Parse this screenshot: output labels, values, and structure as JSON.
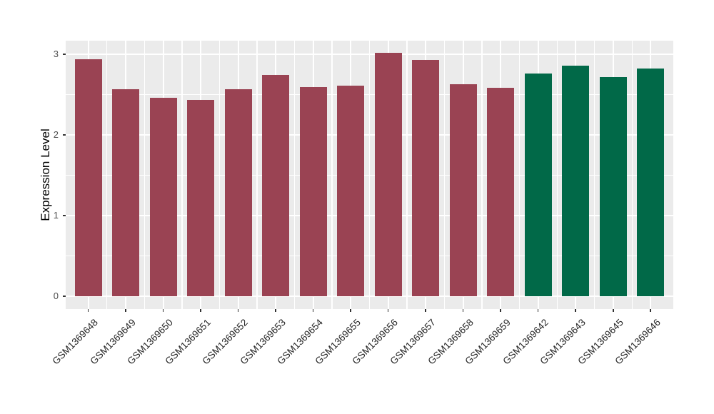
{
  "chart_data": {
    "type": "bar",
    "title": "",
    "xlabel": "",
    "ylabel": "Expression Level",
    "categories": [
      "GSM1369648",
      "GSM1369649",
      "GSM1369650",
      "GSM1369651",
      "GSM1369652",
      "GSM1369653",
      "GSM1369654",
      "GSM1369655",
      "GSM1369656",
      "GSM1369657",
      "GSM1369658",
      "GSM1369659",
      "GSM1369642",
      "GSM1369643",
      "GSM1369645",
      "GSM1369646"
    ],
    "values": [
      2.94,
      2.57,
      2.46,
      2.43,
      2.57,
      2.74,
      2.59,
      2.61,
      3.02,
      2.93,
      2.63,
      2.58,
      2.76,
      2.86,
      2.72,
      2.82
    ],
    "bar_colors": [
      "#9A4353",
      "#9A4353",
      "#9A4353",
      "#9A4353",
      "#9A4353",
      "#9A4353",
      "#9A4353",
      "#9A4353",
      "#9A4353",
      "#9A4353",
      "#9A4353",
      "#9A4353",
      "#016948",
      "#016948",
      "#016948",
      "#016948"
    ],
    "group_palette": {
      "maroon": "#9A4353",
      "green": "#016948"
    },
    "yticks": [
      0,
      1,
      2,
      3
    ],
    "yticks_minor": [
      0.5,
      1.5,
      2.5
    ],
    "ylim": [
      0,
      3.18
    ],
    "grid": true,
    "legend": "none",
    "panel_bg": "#EBEBEB",
    "grid_color": "#FFFFFF",
    "x_label_rotation": -45
  }
}
